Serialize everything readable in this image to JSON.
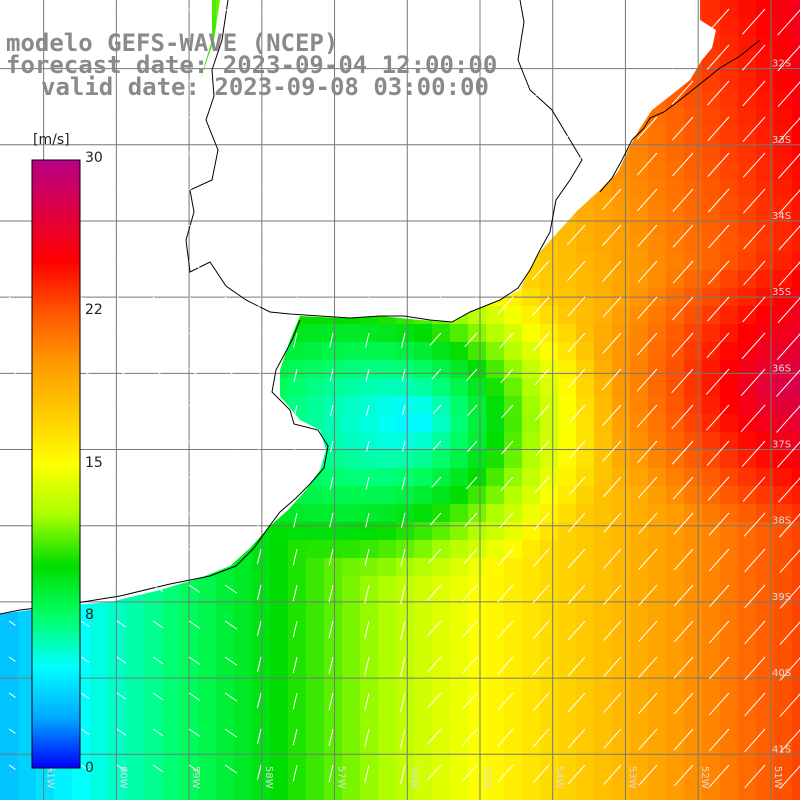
{
  "title": {
    "line1": "modelo GEFS-WAVE (NCEP)",
    "line2": "forecast date: 2023-09-04 12:00:00",
    "line3": "valid date: 2023-09-08 03:00:00"
  },
  "colorbar": {
    "unit": "[m/s]",
    "ticks": [
      "30",
      "22",
      "15",
      "8",
      "0"
    ],
    "tick_values": [
      30,
      22,
      15,
      8,
      0
    ],
    "min": 0,
    "max": 30,
    "colors": [
      "#0000ff",
      "#00aaff",
      "#00ffff",
      "#00ff66",
      "#00dd00",
      "#aaff00",
      "#ffff00",
      "#ffcc00",
      "#ff9900",
      "#ff5500",
      "#ff0000",
      "#dd0044",
      "#b80088"
    ]
  },
  "map": {
    "lat_labels": [
      "32S",
      "33S",
      "34S",
      "35S",
      "36S",
      "37S",
      "38S",
      "39S",
      "40S",
      "41S"
    ],
    "lon_labels": [
      "61W",
      "60W",
      "59W",
      "58W",
      "57W",
      "56W",
      "55W",
      "54W",
      "53W",
      "52W",
      "51W"
    ],
    "lat_values": [
      -32,
      -33,
      -34,
      -35,
      -36,
      -37,
      -38,
      -39,
      -40,
      -41
    ],
    "lon_values": [
      -61,
      -60,
      -59,
      -58,
      -57,
      -56,
      -55,
      -54,
      -53,
      -52,
      -51
    ],
    "extent": {
      "lon_min": -61.6,
      "lon_max": -50.6,
      "lat_min": -41.6,
      "lat_max": -31.1
    },
    "field": "wind speed with direction arrows over ocean",
    "land_color": "#ffffff",
    "grid_color": "#777777"
  }
}
